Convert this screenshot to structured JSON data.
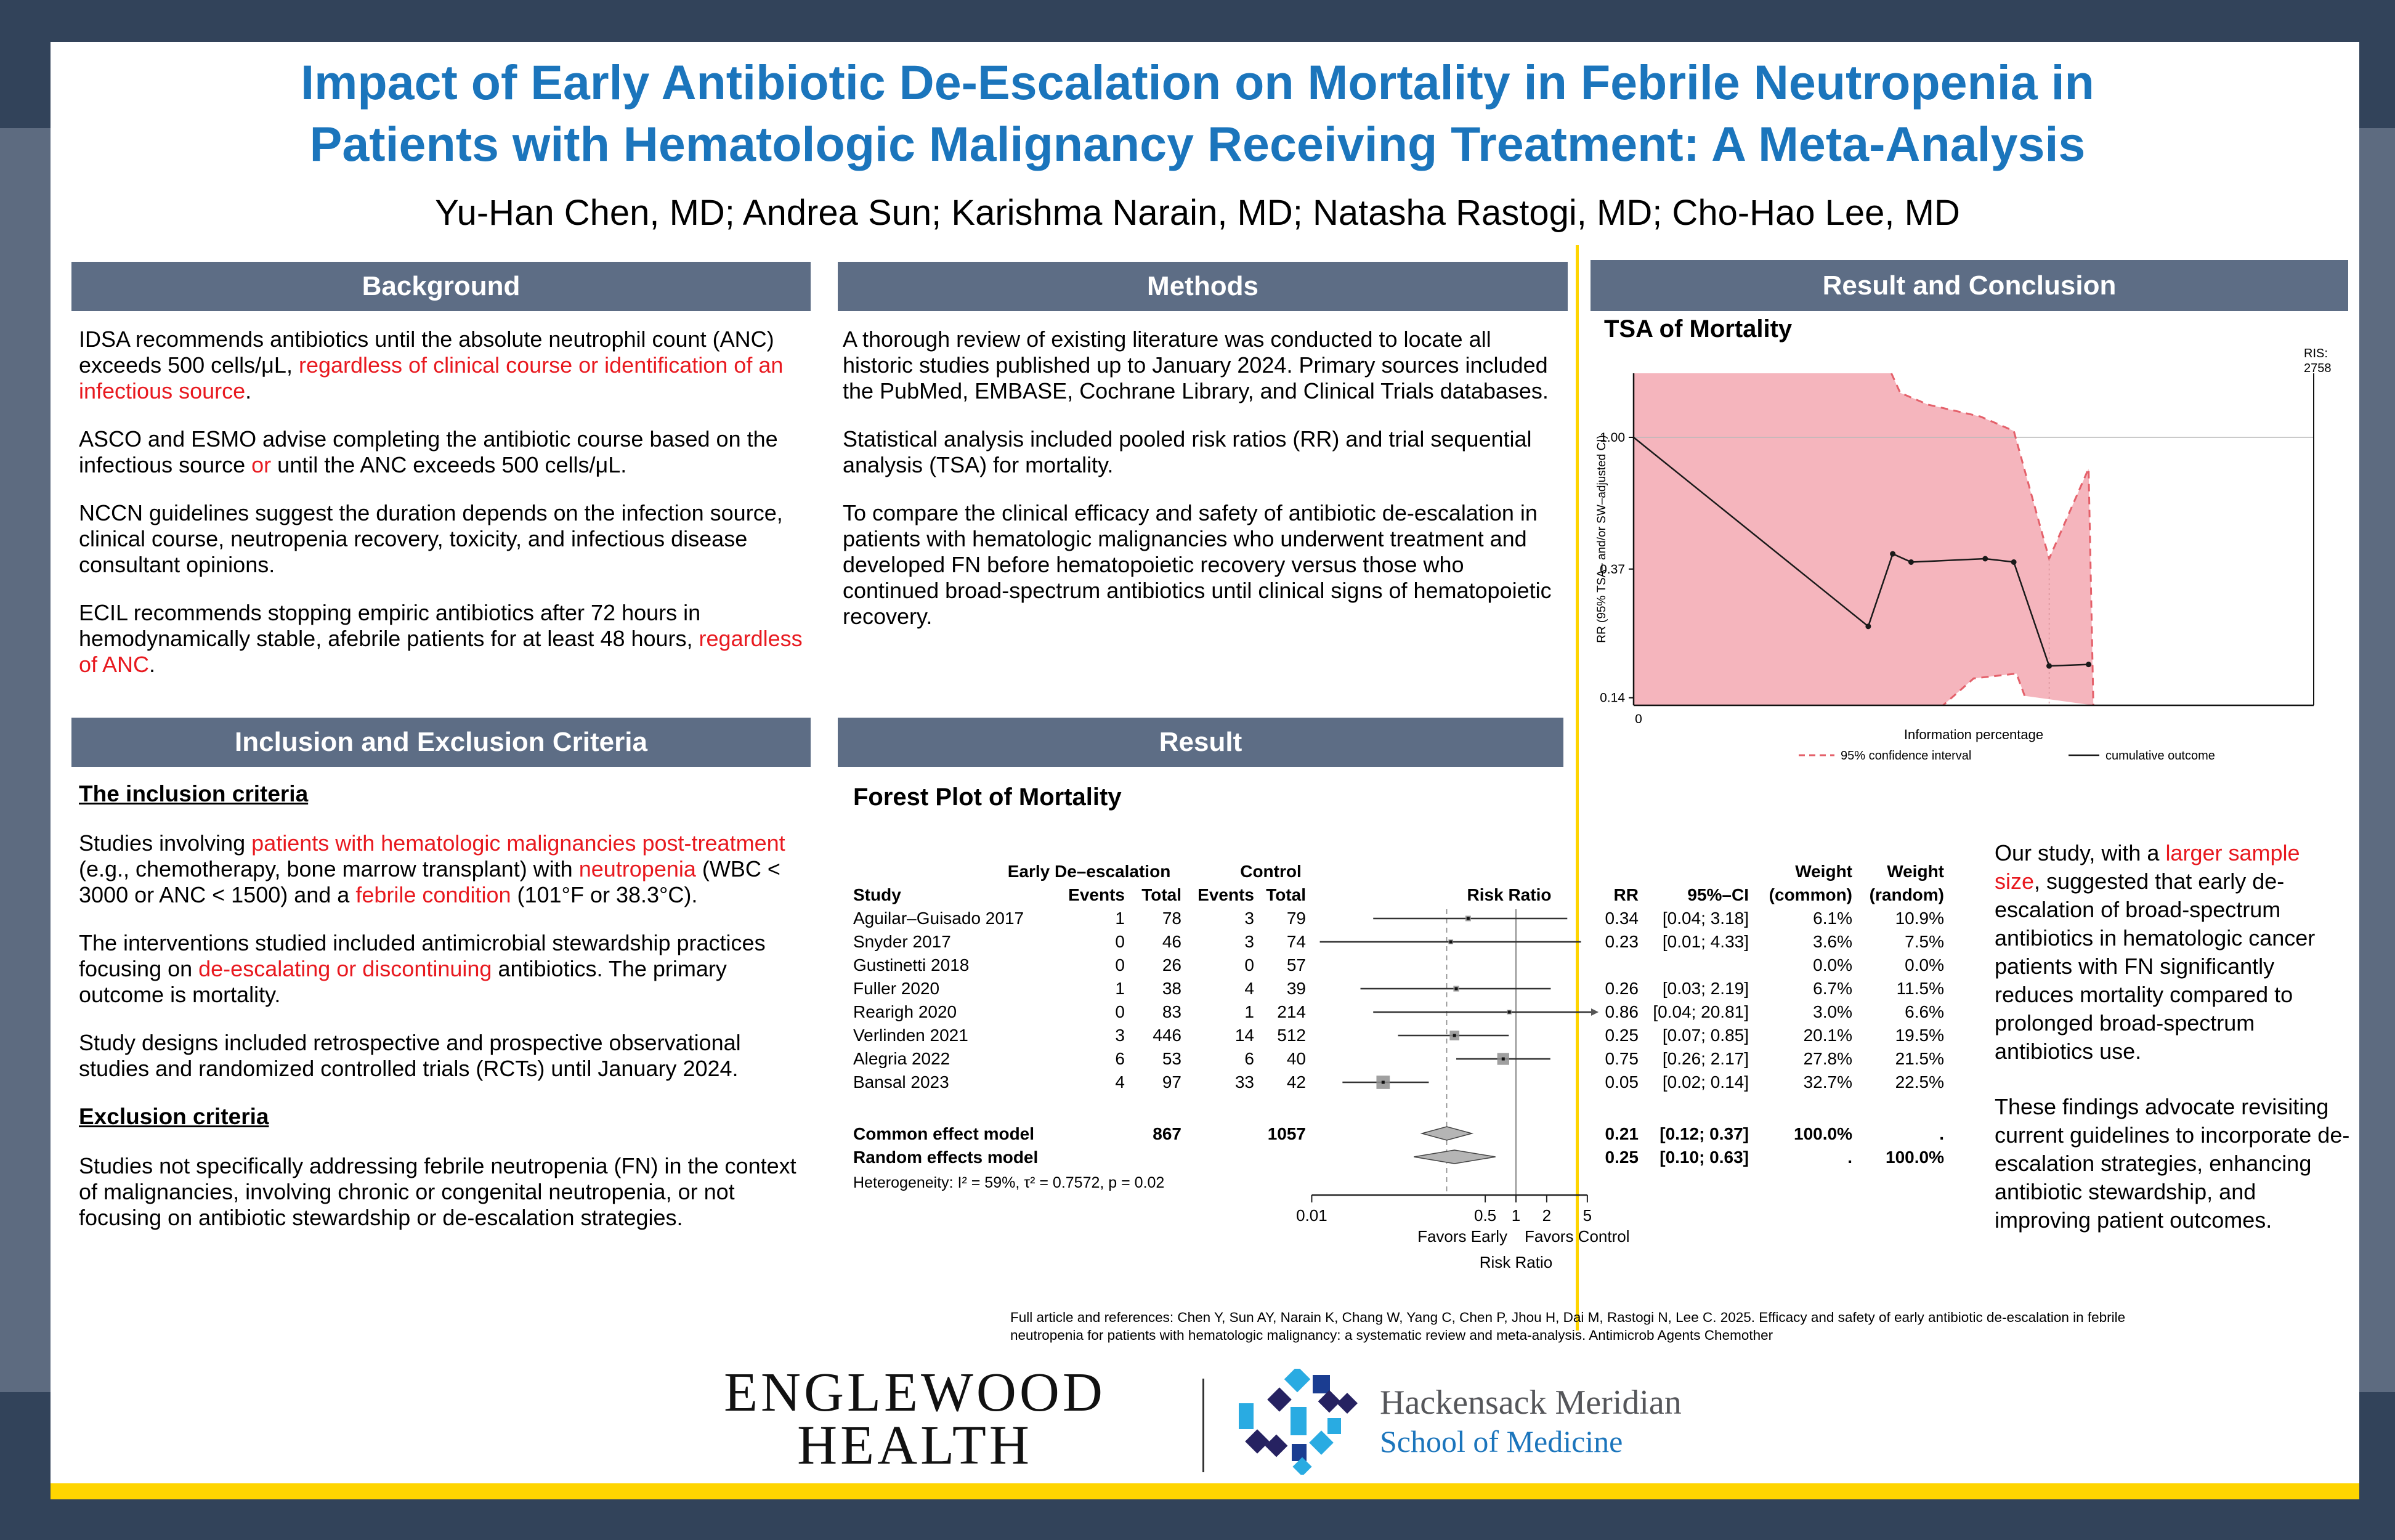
{
  "title": {
    "line1": "Impact of Early Antibiotic De-Escalation on Mortality in Febrile Neutropenia in",
    "line2": "Patients with Hematologic Malignancy Receiving Treatment: A Meta-Analysis",
    "authors": "Yu-Han Chen, MD; Andrea Sun; Karishma Narain, MD; Natasha Rastogi, MD; Cho-Hao Lee, MD"
  },
  "background": {
    "header": "Background",
    "paragraphs": [
      [
        {
          "t": "IDSA recommends antibiotics until the absolute neutrophil count (ANC) exceeds 500 cells/μL, "
        },
        {
          "t": "regardless of clinical course or identification of an infectious source",
          "red": true
        },
        {
          "t": "."
        }
      ],
      [
        {
          "t": "ASCO and ESMO advise completing the antibiotic course based on the infectious source "
        },
        {
          "t": "or",
          "red": true
        },
        {
          "t": " until the ANC exceeds 500 cells/μL."
        }
      ],
      [
        {
          "t": "NCCN guidelines suggest the duration depends on the infection source, clinical course, neutropenia recovery, toxicity, and infectious disease consultant opinions."
        }
      ],
      [
        {
          "t": "ECIL recommends stopping empiric antibiotics after 72 hours in hemodynamically stable, afebrile patients for at least 48 hours, "
        },
        {
          "t": "regardless of ANC",
          "red": true
        },
        {
          "t": "."
        }
      ]
    ]
  },
  "criteria": {
    "header": "Inclusion and Exclusion Criteria",
    "inclusion_heading": "The inclusion criteria",
    "inclusion_paragraphs": [
      [
        {
          "t": "Studies involving "
        },
        {
          "t": "patients with hematologic malignancies post-treatment",
          "red": true
        },
        {
          "t": " (e.g., chemotherapy, bone marrow transplant) with "
        },
        {
          "t": "neutropenia",
          "red": true
        },
        {
          "t": " (WBC < 3000 or ANC < 1500) and a "
        },
        {
          "t": "febrile condition",
          "red": true
        },
        {
          "t": " (101°F or 38.3°C)."
        }
      ],
      [
        {
          "t": "The interventions studied included antimicrobial stewardship practices focusing on "
        },
        {
          "t": "de-escalating or discontinuing",
          "red": true
        },
        {
          "t": " antibiotics. The primary outcome is mortality."
        }
      ],
      [
        {
          "t": "Study designs included retrospective and prospective observational studies and randomized controlled trials (RCTs) until January 2024."
        }
      ]
    ],
    "exclusion_heading": "Exclusion criteria",
    "exclusion_paragraphs": [
      [
        {
          "t": "Studies not specifically addressing febrile neutropenia (FN) in the context of malignancies, involving chronic or congenital neutropenia, or not focusing on antibiotic stewardship or de-escalation strategies."
        }
      ]
    ]
  },
  "methods": {
    "header": "Methods",
    "paragraphs": [
      [
        {
          "t": "A thorough review of existing literature was conducted to locate all historic studies published up to January 2024. Primary sources included the PubMed, EMBASE, Cochrane Library, and Clinical Trials databases."
        }
      ],
      [
        {
          "t": "Statistical analysis included pooled risk ratios (RR) and trial sequential analysis (TSA) for mortality."
        }
      ],
      [
        {
          "t": "To compare the clinical efficacy and safety of antibiotic de-escalation in patients with hematologic malignancies who underwent treatment and developed FN before hematopoietic recovery versus those who continued broad-spectrum antibiotics until clinical signs of hematopoietic recovery."
        }
      ]
    ]
  },
  "result": {
    "header": "Result"
  },
  "conclusion_panel": {
    "header": "Result and Conclusion",
    "paragraphs": [
      [
        {
          "t": "Our study, with a "
        },
        {
          "t": "larger sample size",
          "red": true
        },
        {
          "t": ", suggested that early de-escalation of broad-spectrum antibiotics in hematologic cancer patients with FN significantly reduces mortality compared to prolonged broad-spectrum antibiotics use."
        }
      ],
      [
        {
          "t": "These findings advocate revisiting current guidelines to incorporate de-escalation strategies, enhancing antibiotic stewardship, and improving patient outcomes."
        }
      ]
    ]
  },
  "reference": "Full article and references: Chen Y, Sun AY, Narain K, Chang W, Yang C, Chen P, Jhou H, Dai M, Rastogi N, Lee C. 2025. Efficacy and safety of early antibiotic de-escalation in febrile neutropenia for patients with hematologic malignancy: a systematic review and meta-analysis. Antimicrob Agents Chemother",
  "footer": {
    "englewood_line1": "ENGLEWOOD",
    "englewood_line2": "HEALTH",
    "hackensack_line1": "Hackensack Meridian",
    "hackensack_line2": "School of Medicine"
  },
  "chart_data": [
    {
      "type": "forest",
      "title": "Forest Plot of Mortality",
      "scale": "log",
      "group_headers": {
        "experimental": "Early De–escalation",
        "control": "Control"
      },
      "column_headers": {
        "study": "Study",
        "events": "Events",
        "total": "Total",
        "risk_ratio": "Risk Ratio",
        "rr": "RR",
        "ci": "95%–CI",
        "weight": "Weight",
        "weight_common": "(common)",
        "weight_random": "(random)"
      },
      "rows": [
        {
          "study": "Aguilar–Guisado 2017",
          "e_events": "1",
          "e_total": "78",
          "c_events": "3",
          "c_total": "79",
          "rr": 0.34,
          "ci_low": 0.04,
          "ci_high": 3.18,
          "rr_text": "0.34",
          "ci_text": "[0.04; 3.18]",
          "w_common": 6.1,
          "w_common_text": "6.1%",
          "w_random_text": "10.9%"
        },
        {
          "study": "Snyder 2017",
          "e_events": "0",
          "e_total": "46",
          "c_events": "3",
          "c_total": "74",
          "rr": 0.23,
          "ci_low": 0.01,
          "ci_high": 4.33,
          "rr_text": "0.23",
          "ci_text": "[0.01; 4.33]",
          "w_common": 3.6,
          "w_common_text": "3.6%",
          "w_random_text": "7.5%"
        },
        {
          "study": "Gustinetti 2018",
          "e_events": "0",
          "e_total": "26",
          "c_events": "0",
          "c_total": "57",
          "rr": null,
          "ci_low": null,
          "ci_high": null,
          "rr_text": "",
          "ci_text": "",
          "w_common": 0.0,
          "w_common_text": "0.0%",
          "w_random_text": "0.0%"
        },
        {
          "study": "Fuller 2020",
          "e_events": "1",
          "e_total": "38",
          "c_events": "4",
          "c_total": "39",
          "rr": 0.26,
          "ci_low": 0.03,
          "ci_high": 2.19,
          "rr_text": "0.26",
          "ci_text": "[0.03; 2.19]",
          "w_common": 6.7,
          "w_common_text": "6.7%",
          "w_random_text": "11.5%"
        },
        {
          "study": "Rearigh 2020",
          "e_events": "0",
          "e_total": "83",
          "c_events": "1",
          "c_total": "214",
          "rr": 0.86,
          "ci_low": 0.04,
          "ci_high": 20.81,
          "rr_text": "0.86",
          "ci_text": "[0.04; 20.81]",
          "w_common": 3.0,
          "w_common_text": "3.0%",
          "w_random_text": "6.6%"
        },
        {
          "study": "Verlinden 2021",
          "e_events": "3",
          "e_total": "446",
          "c_events": "14",
          "c_total": "512",
          "rr": 0.25,
          "ci_low": 0.07,
          "ci_high": 0.85,
          "rr_text": "0.25",
          "ci_text": "[0.07; 0.85]",
          "w_common": 20.1,
          "w_common_text": "20.1%",
          "w_random_text": "19.5%"
        },
        {
          "study": "Alegria 2022",
          "e_events": "6",
          "e_total": "53",
          "c_events": "6",
          "c_total": "40",
          "rr": 0.75,
          "ci_low": 0.26,
          "ci_high": 2.17,
          "rr_text": "0.75",
          "ci_text": "[0.26; 2.17]",
          "w_common": 27.8,
          "w_common_text": "27.8%",
          "w_random_text": "21.5%"
        },
        {
          "study": "Bansal 2023",
          "e_events": "4",
          "e_total": "97",
          "c_events": "33",
          "c_total": "42",
          "rr": 0.05,
          "ci_low": 0.02,
          "ci_high": 0.14,
          "rr_text": "0.05",
          "ci_text": "[0.02; 0.14]",
          "w_common": 32.7,
          "w_common_text": "32.7%",
          "w_random_text": "22.5%"
        }
      ],
      "pooled": [
        {
          "label": "Common effect model",
          "e_total": "867",
          "c_total": "1057",
          "rr": 0.21,
          "ci_low": 0.12,
          "ci_high": 0.37,
          "rr_text": "0.21",
          "ci_text": "[0.12; 0.37]",
          "w_common_text": "100.0%",
          "w_random_text": "."
        },
        {
          "label": "Random effects model",
          "e_total": "",
          "c_total": "",
          "rr": 0.25,
          "ci_low": 0.1,
          "ci_high": 0.63,
          "rr_text": "0.25",
          "ci_text": "[0.10; 0.63]",
          "w_common_text": ".",
          "w_random_text": "100.0%"
        }
      ],
      "heterogeneity": "Heterogeneity: I² = 59%, τ² = 0.7572, p = 0.02",
      "x_ticks": [
        0.01,
        0.5,
        1,
        2,
        5
      ],
      "x_tick_labels": [
        "0.01",
        "0.5",
        "1",
        "2",
        "5"
      ],
      "favors_left": "Favors Early",
      "favors_right": "Favors Control",
      "x_label": "Risk Ratio",
      "null_line": 1.0,
      "pooled_line": 0.21
    },
    {
      "type": "line",
      "title": "TSA of Mortality",
      "y_label": "RR (95% TSA– and/or SW–adjusted CI)",
      "x_label": "Information percentage",
      "y_ticks": [
        1.0,
        0.37,
        0.14
      ],
      "y_tick_labels": [
        "1.00",
        "0.37",
        "0.14"
      ],
      "origin_tick_label": "0",
      "ris_label_line1": "RIS:",
      "ris_label_line2": "2758",
      "legend": [
        {
          "label": "95% confidence interval",
          "style": "dashed"
        },
        {
          "label": "cumulative outcome",
          "style": "solid"
        }
      ],
      "ci_color": "#E4606A",
      "ci_fill": "#F5B5BD",
      "line_color": "#1A1A1A",
      "x_range": [
        0,
        1
      ],
      "y_range_log": [
        0.13,
        1.65
      ],
      "cumulative_outcome": [
        [
          0,
          1.0
        ],
        [
          0.345,
          0.24
        ],
        [
          0.381,
          0.415
        ],
        [
          0.408,
          0.39
        ],
        [
          0.517,
          0.4
        ],
        [
          0.559,
          0.39
        ],
        [
          0.611,
          0.178
        ],
        [
          0.669,
          0.18
        ]
      ],
      "ci_region": [
        [
          0,
          1.65
        ],
        [
          0.379,
          1.65
        ],
        [
          0.392,
          1.4
        ],
        [
          0.433,
          1.28
        ],
        [
          0.51,
          1.17
        ],
        [
          0.559,
          1.05
        ],
        [
          0.611,
          0.4
        ],
        [
          0.669,
          0.79
        ],
        [
          0.676,
          0.13
        ],
        [
          0.575,
          0.142
        ],
        [
          0.563,
          0.168
        ],
        [
          0.5,
          0.162
        ],
        [
          0.455,
          0.13
        ],
        [
          0,
          0.13
        ]
      ],
      "ci_border_upper_indices": [
        1,
        8
      ],
      "ci_border_lower_indices": [
        9,
        12
      ]
    }
  ]
}
